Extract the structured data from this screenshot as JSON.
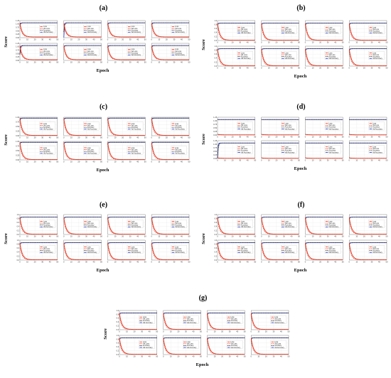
{
  "figure": {
    "colors": {
      "loss": "#e8331c",
      "val_loss": "#e8331c",
      "accuracy": "#1a1a1a",
      "val_accuracy": "#2233bb"
    }
  },
  "chart_data": [
    {
      "type": "line",
      "panel": "(a)",
      "subplots": 8,
      "layout": "2 rows x 4 columns",
      "xlabel": "Epoch",
      "ylabel": "Score",
      "x_ticks": [
        "0",
        "10",
        "20",
        "30",
        "40",
        "50"
      ],
      "y_ticks": [
        "0.00",
        "0.25",
        "0.50",
        "0.75",
        "1.00",
        "1.25"
      ],
      "legend": [
        "Loss",
        "Val Loss",
        "Accuracy",
        "Val Accuracy"
      ],
      "series_style": {
        "Loss": "red solid",
        "Val Loss": "red dashed",
        "Accuracy": "black dashed",
        "Val Accuracy": "blue solid"
      },
      "subplot_values": [
        {
          "loss": [
            1.0,
            0.05
          ],
          "acc": [
            0.8,
            1.0
          ],
          "val_acc": [
            0.8,
            1.0
          ]
        },
        {
          "loss": [
            1.0,
            0.05
          ],
          "acc": [
            0.4,
            1.0
          ],
          "val_acc": [
            0.0,
            1.0
          ]
        },
        {
          "loss": [
            1.0,
            0.05
          ],
          "acc": [
            0.85,
            1.0
          ],
          "val_acc": [
            0.85,
            1.0
          ]
        },
        {
          "loss": [
            1.0,
            0.05
          ],
          "acc": [
            0.85,
            1.0
          ],
          "val_acc": [
            0.85,
            1.0
          ]
        },
        {
          "loss": [
            1.0,
            0.05
          ],
          "acc": [
            0.4,
            1.0
          ],
          "val_acc": [
            0.4,
            1.0
          ]
        },
        {
          "loss": [
            1.0,
            0.05
          ],
          "acc": [
            0.85,
            1.0
          ],
          "val_acc": [
            0.85,
            1.0
          ]
        },
        {
          "loss": [
            1.0,
            0.05
          ],
          "acc": [
            0.85,
            1.0
          ],
          "val_acc": [
            0.85,
            1.0
          ]
        },
        {
          "loss": [
            1.0,
            0.05
          ],
          "acc": [
            0.85,
            1.0
          ],
          "val_acc": [
            0.85,
            1.0
          ]
        }
      ]
    },
    {
      "type": "line",
      "panel": "(b)",
      "subplots": 8,
      "layout": "2 rows x 4 columns",
      "xlabel": "Epoch",
      "ylabel": "Score",
      "x_ticks": [
        "0",
        "10",
        "20",
        "30",
        "40",
        "50"
      ],
      "y_ticks": [
        "0.0",
        "0.2",
        "0.4",
        "0.6",
        "0.8",
        "1.0"
      ],
      "legend": [
        "Loss",
        "Val Loss",
        "Accuracy",
        "Val Accuracy"
      ],
      "series_style": {
        "Loss": "red solid",
        "Val Loss": "red dashed",
        "Accuracy": "black dashed",
        "Val Accuracy": "blue solid"
      },
      "subplot_values": [
        {
          "loss": [
            1.0,
            0.02
          ],
          "acc": [
            0.9,
            1.0
          ],
          "val_acc": [
            0.9,
            1.0
          ]
        },
        {
          "loss": [
            1.0,
            0.02
          ],
          "acc": [
            0.9,
            1.0
          ],
          "val_acc": [
            0.9,
            1.0
          ]
        },
        {
          "loss": [
            1.0,
            0.02
          ],
          "acc": [
            0.9,
            1.0
          ],
          "val_acc": [
            0.9,
            1.0
          ]
        },
        {
          "loss": [
            1.0,
            0.02
          ],
          "acc": [
            0.9,
            1.0
          ],
          "val_acc": [
            0.9,
            1.0
          ]
        },
        {
          "loss": [
            1.0,
            0.02
          ],
          "acc": [
            0.9,
            1.0
          ],
          "val_acc": [
            0.9,
            1.0
          ]
        },
        {
          "loss": [
            1.0,
            0.02
          ],
          "acc": [
            0.9,
            1.0
          ],
          "val_acc": [
            0.9,
            1.0
          ]
        },
        {
          "loss": [
            1.0,
            0.02
          ],
          "acc": [
            0.9,
            1.0
          ],
          "val_acc": [
            0.9,
            1.0
          ]
        },
        {
          "loss": [
            1.0,
            0.02
          ],
          "acc": [
            0.9,
            1.0
          ],
          "val_acc": [
            0.9,
            1.0
          ]
        }
      ]
    },
    {
      "type": "line",
      "panel": "(c)",
      "subplots": 8,
      "layout": "2 rows x 4 columns",
      "xlabel": "Epoch",
      "ylabel": "Score",
      "x_ticks": [
        "0",
        "10",
        "20",
        "30",
        "40",
        "50"
      ],
      "y_ticks": [
        "0.00",
        "0.25",
        "0.50",
        "0.75",
        "1.00"
      ],
      "legend": [
        "Loss",
        "Val Loss",
        "Accuracy",
        "Val Accuracy"
      ],
      "series_style": {
        "Loss": "red solid",
        "Val Loss": "red dashed",
        "Accuracy": "black dashed",
        "Val Accuracy": "blue solid"
      },
      "subplot_values": [
        {
          "loss": [
            1.0,
            0.02
          ],
          "acc": [
            0.85,
            1.0
          ],
          "val_acc": [
            0.85,
            1.0
          ]
        },
        {
          "loss": [
            1.0,
            0.02
          ],
          "acc": [
            0.9,
            1.0
          ],
          "val_acc": [
            0.9,
            1.0
          ]
        },
        {
          "loss": [
            1.0,
            0.02
          ],
          "acc": [
            0.9,
            1.0
          ],
          "val_acc": [
            0.9,
            1.0
          ]
        },
        {
          "loss": [
            1.0,
            0.02
          ],
          "acc": [
            0.9,
            1.0
          ],
          "val_acc": [
            0.9,
            1.0
          ]
        },
        {
          "loss": [
            1.0,
            0.02
          ],
          "acc": [
            0.9,
            1.0
          ],
          "val_acc": [
            0.9,
            1.0
          ]
        },
        {
          "loss": [
            1.0,
            0.02
          ],
          "acc": [
            0.9,
            1.0
          ],
          "val_acc": [
            0.9,
            1.0
          ]
        },
        {
          "loss": [
            1.0,
            0.02
          ],
          "acc": [
            0.9,
            1.0
          ],
          "val_acc": [
            0.9,
            1.0
          ]
        },
        {
          "loss": [
            1.0,
            0.02
          ],
          "acc": [
            0.9,
            1.0
          ],
          "val_acc": [
            0.9,
            1.0
          ]
        }
      ]
    },
    {
      "type": "line",
      "panel": "(d)",
      "subplots": 8,
      "layout": "2 rows x 4 columns",
      "xlabel": "Epoch",
      "ylabel": "Score",
      "x_ticks": [
        "0",
        "10",
        "20",
        "30",
        "40",
        "50"
      ],
      "y_ticks": [
        "0.00",
        "0.25",
        "0.50",
        "0.75",
        "1.00",
        "1.25"
      ],
      "legend": [
        "Loss",
        "Val Loss",
        "Accuracy",
        "Val Accuracy"
      ],
      "series_style": {
        "Loss": "red solid",
        "Val Loss": "red dashed",
        "Accuracy": "black dashed",
        "Val Accuracy": "blue solid"
      },
      "subplot_values": [
        {
          "loss": [
            0.05,
            0.01
          ],
          "acc": [
            1.0,
            1.0
          ],
          "val_acc": [
            1.0,
            1.0
          ]
        },
        {
          "loss": [
            0.05,
            0.01
          ],
          "acc": [
            1.0,
            1.0
          ],
          "val_acc": [
            1.0,
            1.0
          ]
        },
        {
          "loss": [
            0.05,
            0.01
          ],
          "acc": [
            1.0,
            1.0
          ],
          "val_acc": [
            1.0,
            1.0
          ]
        },
        {
          "loss": [
            0.05,
            0.01
          ],
          "acc": [
            1.0,
            1.0
          ],
          "val_acc": [
            1.0,
            1.0
          ]
        },
        {
          "loss": [
            0.05,
            0.01
          ],
          "acc": [
            0.0,
            1.0
          ],
          "val_acc": [
            0.0,
            1.0
          ]
        },
        {
          "loss": [
            0.05,
            0.01
          ],
          "acc": [
            1.0,
            1.0
          ],
          "val_acc": [
            1.0,
            1.0
          ]
        },
        {
          "loss": [
            0.05,
            0.01
          ],
          "acc": [
            1.0,
            1.0
          ],
          "val_acc": [
            1.0,
            1.0
          ]
        },
        {
          "loss": [
            0.05,
            0.01
          ],
          "acc": [
            1.0,
            1.0
          ],
          "val_acc": [
            1.0,
            1.0
          ]
        }
      ]
    },
    {
      "type": "line",
      "panel": "(e)",
      "subplots": 8,
      "layout": "2 rows x 4 columns",
      "xlabel": "Epoch",
      "ylabel": "Score",
      "x_ticks": [
        "0",
        "10",
        "20",
        "30",
        "40",
        "50"
      ],
      "y_ticks": [
        "0.0",
        "0.2",
        "0.4",
        "0.6",
        "0.8",
        "1.0"
      ],
      "legend": [
        "Loss",
        "Val Loss",
        "Accuracy",
        "Val Accuracy"
      ],
      "series_style": {
        "Loss": "red solid",
        "Val Loss": "red dashed",
        "Accuracy": "black dashed",
        "Val Accuracy": "blue solid"
      },
      "subplot_values": [
        {
          "loss": [
            1.0,
            0.02
          ],
          "acc": [
            0.9,
            1.0
          ],
          "val_acc": [
            0.9,
            1.0
          ]
        },
        {
          "loss": [
            1.0,
            0.02
          ],
          "acc": [
            0.9,
            1.0
          ],
          "val_acc": [
            0.9,
            1.0
          ]
        },
        {
          "loss": [
            1.0,
            0.02
          ],
          "acc": [
            0.9,
            1.0
          ],
          "val_acc": [
            0.9,
            1.0
          ]
        },
        {
          "loss": [
            1.0,
            0.02
          ],
          "acc": [
            0.9,
            1.0
          ],
          "val_acc": [
            0.9,
            1.0
          ]
        },
        {
          "loss": [
            1.0,
            0.02
          ],
          "acc": [
            0.9,
            1.0
          ],
          "val_acc": [
            0.9,
            1.0
          ]
        },
        {
          "loss": [
            1.0,
            0.02
          ],
          "acc": [
            0.9,
            1.0
          ],
          "val_acc": [
            0.9,
            1.0
          ]
        },
        {
          "loss": [
            1.0,
            0.02
          ],
          "acc": [
            0.9,
            1.0
          ],
          "val_acc": [
            0.9,
            1.0
          ]
        },
        {
          "loss": [
            1.0,
            0.02
          ],
          "acc": [
            0.9,
            1.0
          ],
          "val_acc": [
            0.9,
            1.0
          ]
        }
      ]
    },
    {
      "type": "line",
      "panel": "(f)",
      "subplots": 8,
      "layout": "2 rows x 4 columns",
      "xlabel": "Epoch",
      "ylabel": "Score",
      "x_ticks": [
        "0",
        "10",
        "20",
        "30",
        "40",
        "50"
      ],
      "y_ticks": [
        "0.0",
        "0.2",
        "0.4",
        "0.6",
        "0.8",
        "1.0"
      ],
      "legend": [
        "Loss",
        "Val Loss",
        "Accuracy",
        "Val Accuracy"
      ],
      "series_style": {
        "Loss": "red solid",
        "Val Loss": "red dashed",
        "Accuracy": "black dashed",
        "Val Accuracy": "blue solid"
      },
      "subplot_values": [
        {
          "loss": [
            1.0,
            0.02
          ],
          "acc": [
            0.9,
            1.0
          ],
          "val_acc": [
            0.9,
            1.0
          ]
        },
        {
          "loss": [
            1.0,
            0.02
          ],
          "acc": [
            0.9,
            1.0
          ],
          "val_acc": [
            0.9,
            1.0
          ]
        },
        {
          "loss": [
            1.0,
            0.02
          ],
          "acc": [
            0.9,
            1.0
          ],
          "val_acc": [
            0.9,
            1.0
          ]
        },
        {
          "loss": [
            1.0,
            0.02
          ],
          "acc": [
            0.9,
            1.0
          ],
          "val_acc": [
            0.9,
            1.0
          ]
        },
        {
          "loss": [
            1.0,
            0.02
          ],
          "acc": [
            0.9,
            1.0
          ],
          "val_acc": [
            0.9,
            1.0
          ]
        },
        {
          "loss": [
            1.0,
            0.02
          ],
          "acc": [
            0.9,
            1.0
          ],
          "val_acc": [
            0.9,
            1.0
          ]
        },
        {
          "loss": [
            1.0,
            0.02
          ],
          "acc": [
            0.9,
            1.0
          ],
          "val_acc": [
            0.9,
            1.0
          ]
        },
        {
          "loss": [
            1.0,
            0.02
          ],
          "acc": [
            0.9,
            1.0
          ],
          "val_acc": [
            0.9,
            1.0
          ]
        }
      ]
    },
    {
      "type": "line",
      "panel": "(g)",
      "subplots": 8,
      "layout": "2 rows x 4 columns",
      "xlabel": "Epoch",
      "ylabel": "Score",
      "x_ticks": [
        "0",
        "10",
        "20",
        "30",
        "40",
        "50"
      ],
      "y_ticks": [
        "0.0",
        "0.2",
        "0.4",
        "0.6",
        "0.8",
        "1.0"
      ],
      "legend": [
        "Loss",
        "Val Loss",
        "Accuracy",
        "Val Accuracy"
      ],
      "series_style": {
        "Loss": "red solid",
        "Val Loss": "red dashed",
        "Accuracy": "black dashed",
        "Val Accuracy": "blue solid"
      },
      "subplot_values": [
        {
          "loss": [
            1.0,
            0.02
          ],
          "acc": [
            0.9,
            1.0
          ],
          "val_acc": [
            0.9,
            1.0
          ]
        },
        {
          "loss": [
            1.0,
            0.02
          ],
          "acc": [
            0.9,
            1.0
          ],
          "val_acc": [
            0.9,
            1.0
          ]
        },
        {
          "loss": [
            1.0,
            0.02
          ],
          "acc": [
            0.9,
            1.0
          ],
          "val_acc": [
            0.9,
            1.0
          ]
        },
        {
          "loss": [
            1.0,
            0.02
          ],
          "acc": [
            0.9,
            1.0
          ],
          "val_acc": [
            0.9,
            1.0
          ]
        },
        {
          "loss": [
            1.0,
            0.02
          ],
          "acc": [
            0.9,
            1.0
          ],
          "val_acc": [
            0.9,
            1.0
          ]
        },
        {
          "loss": [
            1.0,
            0.02
          ],
          "acc": [
            0.9,
            1.0
          ],
          "val_acc": [
            0.9,
            1.0
          ]
        },
        {
          "loss": [
            1.0,
            0.02
          ],
          "acc": [
            0.9,
            1.0
          ],
          "val_acc": [
            0.9,
            1.0
          ]
        },
        {
          "loss": [
            1.0,
            0.02
          ],
          "acc": [
            0.9,
            1.0
          ],
          "val_acc": [
            0.9,
            1.0
          ]
        }
      ]
    }
  ]
}
